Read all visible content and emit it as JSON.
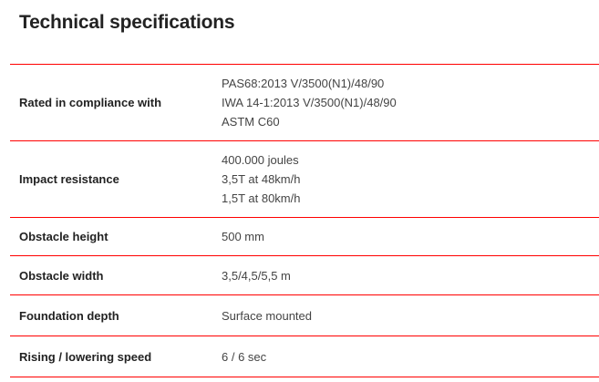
{
  "title": "Technical specifications",
  "accent_color": "#ff0000",
  "rows": [
    {
      "label": "Rated in compliance with",
      "values": [
        "PAS68:2013 V/3500(N1)/48/90",
        "IWA 14-1:2013 V/3500(N1)/48/90",
        "ASTM C60"
      ]
    },
    {
      "label": "Impact resistance",
      "values": [
        "400.000 joules",
        "3,5T at 48km/h",
        "1,5T at 80km/h"
      ]
    },
    {
      "label": "Obstacle height",
      "values": [
        "500 mm"
      ]
    },
    {
      "label": "Obstacle width",
      "values": [
        "3,5/4,5/5,5 m"
      ]
    },
    {
      "label": "Foundation depth",
      "values": [
        "Surface mounted"
      ]
    },
    {
      "label": "Rising / lowering speed",
      "values": [
        "6 / 6 sec"
      ]
    }
  ]
}
